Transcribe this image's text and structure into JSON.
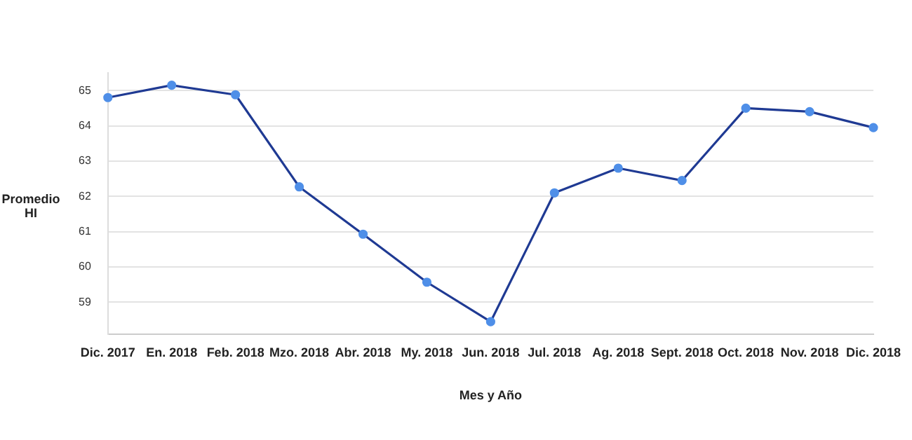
{
  "chart_data": {
    "type": "line",
    "xlabel": "Mes y Año",
    "ylabel": "Promedio HI",
    "categories": [
      "Dic. 2017",
      "En. 2018",
      "Feb. 2018",
      "Mzo. 2018",
      "Abr. 2018",
      "My. 2018",
      "Jun. 2018",
      "Jul. 2018",
      "Ag. 2018",
      "Sept. 2018",
      "Oct. 2018",
      "Nov. 2018",
      "Dic. 2018"
    ],
    "series": [
      {
        "color": "#1f3a93",
        "values": [
          64.8,
          65.15,
          64.88,
          62.27,
          60.93,
          59.57,
          58.45,
          62.1,
          62.8,
          62.45,
          64.5,
          64.4,
          63.95
        ]
      }
    ],
    "ylim": [
      58.1,
      65.5
    ],
    "yticks": [
      59,
      60,
      61,
      62,
      63,
      64,
      65
    ],
    "grid": "y",
    "legend": false,
    "marker": "circle",
    "line_style": "solid"
  }
}
